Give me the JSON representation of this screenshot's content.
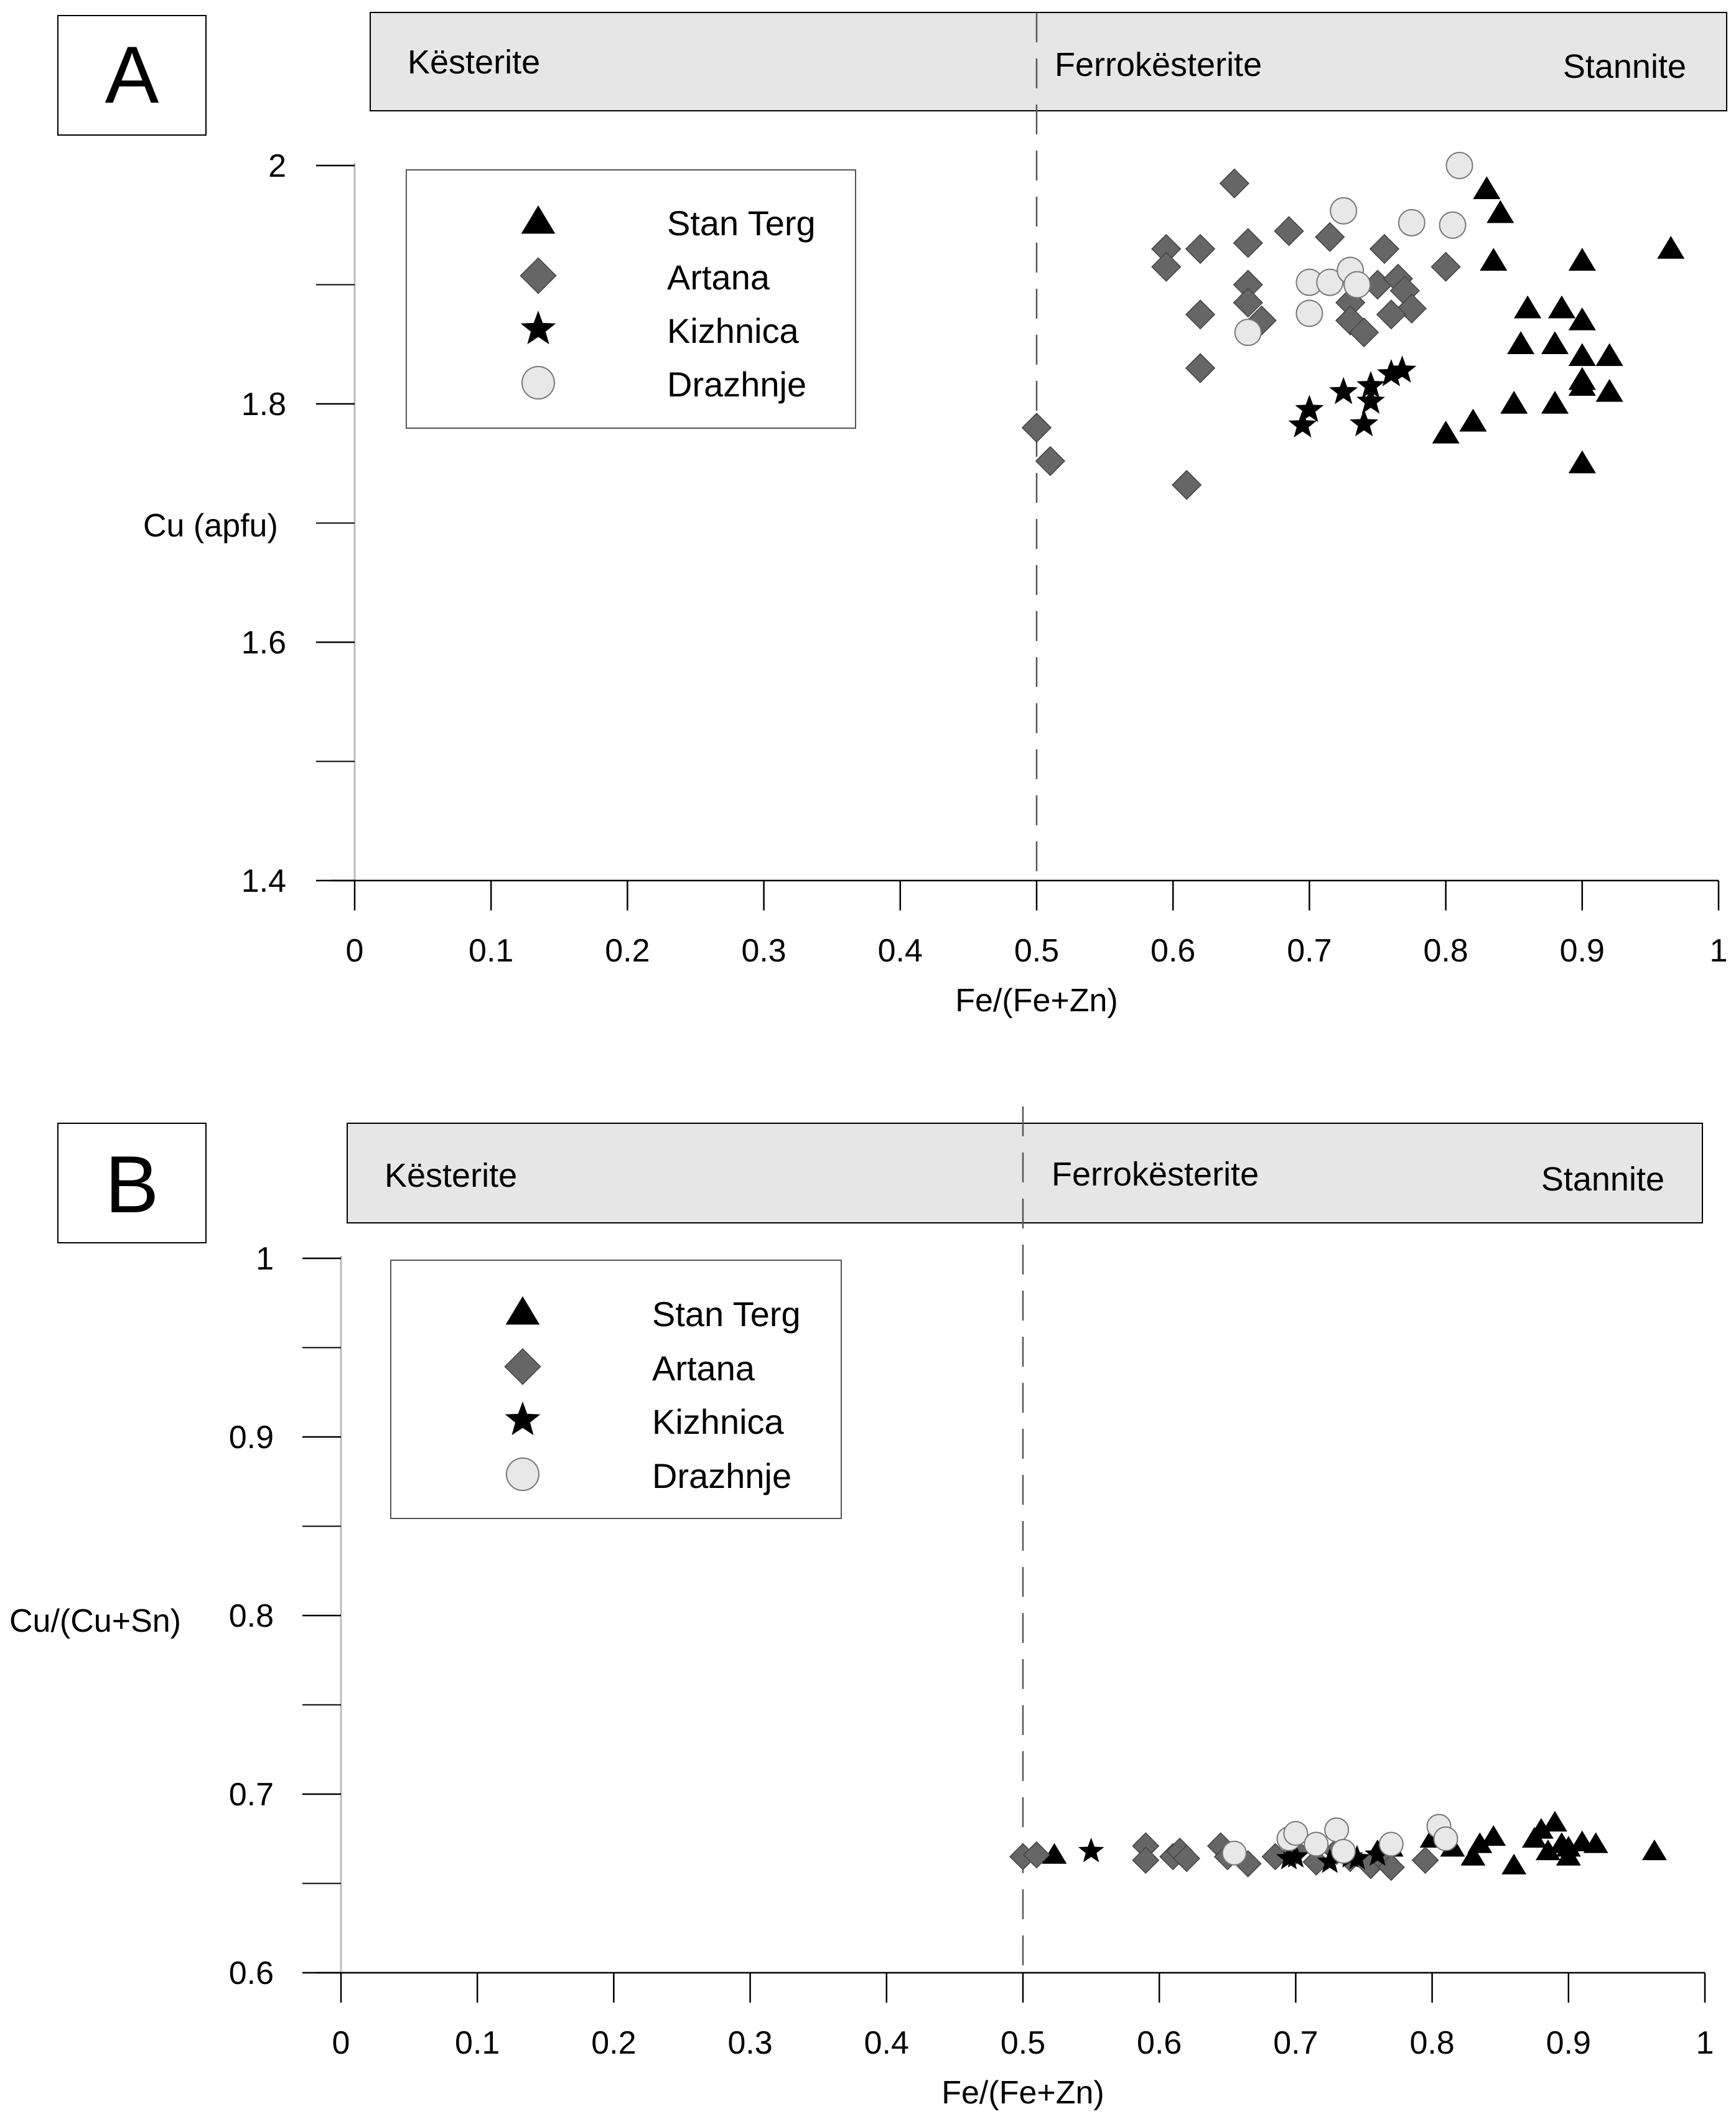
{
  "colors": {
    "stan_terg": "#000000",
    "artana": "#666666",
    "kizhnica": "#000000",
    "drazhnje": "#e8e8e8",
    "band_fill": "#e6e6e6",
    "axis": "#000000",
    "divider": "#555555"
  },
  "legend_entries": [
    {
      "key": "stan_terg",
      "label": "Stan Terg",
      "marker": "triangle"
    },
    {
      "key": "artana",
      "label": "Artana",
      "marker": "diamond"
    },
    {
      "key": "kizhnica",
      "label": "Kizhnica",
      "marker": "star"
    },
    {
      "key": "drazhnje",
      "label": "Drazhnje",
      "marker": "circle"
    }
  ],
  "chart_data": [
    {
      "panel_label": "A",
      "type": "scatter",
      "xlabel": "Fe/(Fe+Zn)",
      "ylabel": "Cu (apfu)",
      "xlim": [
        0,
        1
      ],
      "ylim": [
        1.4,
        2.0
      ],
      "xticks": [
        "0",
        "0.1",
        "0.2",
        "0.3",
        "0.4",
        "0.5",
        "0.6",
        "0.7",
        "0.8",
        "0.9",
        "1"
      ],
      "yticks": [
        "1.4",
        "1.6",
        "1.8",
        "2"
      ],
      "zones": {
        "kesterite": "Kësterite",
        "ferrokesterite": "Ferrokësterite",
        "stannite": "Stannite",
        "boundary_x": 0.5
      },
      "series": [
        {
          "key": "stan_terg",
          "name": "Stan Terg",
          "points": [
            [
              0.83,
              1.98
            ],
            [
              0.84,
              1.96
            ],
            [
              0.835,
              1.92
            ],
            [
              0.9,
              1.92
            ],
            [
              0.965,
              1.93
            ],
            [
              0.86,
              1.88
            ],
            [
              0.885,
              1.88
            ],
            [
              0.9,
              1.87
            ],
            [
              0.855,
              1.85
            ],
            [
              0.88,
              1.85
            ],
            [
              0.9,
              1.84
            ],
            [
              0.92,
              1.84
            ],
            [
              0.9,
              1.82
            ],
            [
              0.9,
              1.815
            ],
            [
              0.92,
              1.81
            ],
            [
              0.85,
              1.8
            ],
            [
              0.88,
              1.8
            ],
            [
              0.82,
              1.785
            ],
            [
              0.8,
              1.775
            ],
            [
              0.9,
              1.75
            ]
          ]
        },
        {
          "key": "artana",
          "name": "Artana",
          "points": [
            [
              0.645,
              1.985
            ],
            [
              0.595,
              1.93
            ],
            [
              0.595,
              1.915
            ],
            [
              0.62,
              1.93
            ],
            [
              0.655,
              1.935
            ],
            [
              0.685,
              1.945
            ],
            [
              0.715,
              1.94
            ],
            [
              0.755,
              1.93
            ],
            [
              0.655,
              1.9
            ],
            [
              0.655,
              1.885
            ],
            [
              0.62,
              1.875
            ],
            [
              0.665,
              1.87
            ],
            [
              0.73,
              1.885
            ],
            [
              0.73,
              1.87
            ],
            [
              0.74,
              1.86
            ],
            [
              0.75,
              1.9
            ],
            [
              0.765,
              1.905
            ],
            [
              0.77,
              1.895
            ],
            [
              0.775,
              1.88
            ],
            [
              0.76,
              1.875
            ],
            [
              0.8,
              1.915
            ],
            [
              0.62,
              1.83
            ],
            [
              0.5,
              1.78
            ],
            [
              0.51,
              1.752
            ],
            [
              0.61,
              1.732
            ]
          ]
        },
        {
          "key": "kizhnica",
          "name": "Kizhnica",
          "points": [
            [
              0.695,
              1.782
            ],
            [
              0.7,
              1.795
            ],
            [
              0.725,
              1.81
            ],
            [
              0.74,
              1.783
            ],
            [
              0.745,
              1.815
            ],
            [
              0.745,
              1.802
            ],
            [
              0.76,
              1.825
            ],
            [
              0.768,
              1.828
            ]
          ]
        },
        {
          "key": "drazhnje",
          "name": "Drazhnje",
          "points": [
            [
              0.81,
              2.0
            ],
            [
              0.725,
              1.962
            ],
            [
              0.775,
              1.952
            ],
            [
              0.805,
              1.95
            ],
            [
              0.7,
              1.902
            ],
            [
              0.715,
              1.902
            ],
            [
              0.73,
              1.912
            ],
            [
              0.735,
              1.9
            ],
            [
              0.7,
              1.876
            ],
            [
              0.655,
              1.86
            ]
          ]
        }
      ]
    },
    {
      "panel_label": "B",
      "type": "scatter",
      "xlabel": "Fe/(Fe+Zn)",
      "ylabel": "Cu/(Cu+Sn)",
      "xlim": [
        0,
        1
      ],
      "ylim": [
        0.6,
        1.0
      ],
      "xticks": [
        "0",
        "0.1",
        "0.2",
        "0.3",
        "0.4",
        "0.5",
        "0.6",
        "0.7",
        "0.8",
        "0.9",
        "1"
      ],
      "yticks": [
        "0.6",
        "0.7",
        "0.8",
        "0.9",
        "1"
      ],
      "zones": {
        "kesterite": "Kësterite",
        "ferrokesterite": "Ferrokësterite",
        "stannite": "Stannite",
        "boundary_x": 0.5
      },
      "series": [
        {
          "key": "stan_terg",
          "name": "Stan Terg",
          "points": [
            [
              0.523,
              0.666
            ],
            [
              0.8,
              0.675
            ],
            [
              0.815,
              0.67
            ],
            [
              0.83,
              0.665
            ],
            [
              0.835,
              0.672
            ],
            [
              0.845,
              0.676
            ],
            [
              0.86,
              0.66
            ],
            [
              0.875,
              0.675
            ],
            [
              0.88,
              0.68
            ],
            [
              0.885,
              0.668
            ],
            [
              0.89,
              0.684
            ],
            [
              0.895,
              0.672
            ],
            [
              0.9,
              0.665
            ],
            [
              0.9,
              0.67
            ],
            [
              0.91,
              0.673
            ],
            [
              0.92,
              0.672
            ],
            [
              0.963,
              0.668
            ],
            [
              0.77,
              0.67
            ],
            [
              0.76,
              0.668
            ]
          ]
        },
        {
          "key": "artana",
          "name": "Artana",
          "points": [
            [
              0.5,
              0.665
            ],
            [
              0.51,
              0.666
            ],
            [
              0.59,
              0.671
            ],
            [
              0.59,
              0.663
            ],
            [
              0.61,
              0.665
            ],
            [
              0.615,
              0.668
            ],
            [
              0.62,
              0.664
            ],
            [
              0.645,
              0.671
            ],
            [
              0.65,
              0.665
            ],
            [
              0.665,
              0.661
            ],
            [
              0.685,
              0.665
            ],
            [
              0.7,
              0.668
            ],
            [
              0.715,
              0.662
            ],
            [
              0.73,
              0.668
            ],
            [
              0.74,
              0.664
            ],
            [
              0.755,
              0.66
            ],
            [
              0.765,
              0.663
            ],
            [
              0.77,
              0.659
            ],
            [
              0.795,
              0.663
            ]
          ]
        },
        {
          "key": "kizhnica",
          "name": "Kizhnica",
          "points": [
            [
              0.55,
              0.668
            ],
            [
              0.695,
              0.664
            ],
            [
              0.7,
              0.665
            ],
            [
              0.725,
              0.662
            ],
            [
              0.74,
              0.665
            ],
            [
              0.745,
              0.664
            ],
            [
              0.76,
              0.666
            ]
          ]
        },
        {
          "key": "drazhnje",
          "name": "Drazhnje",
          "points": [
            [
              0.655,
              0.667
            ],
            [
              0.695,
              0.675
            ],
            [
              0.7,
              0.678
            ],
            [
              0.715,
              0.672
            ],
            [
              0.73,
              0.68
            ],
            [
              0.735,
              0.668
            ],
            [
              0.77,
              0.672
            ],
            [
              0.805,
              0.682
            ],
            [
              0.81,
              0.675
            ]
          ]
        }
      ]
    }
  ]
}
